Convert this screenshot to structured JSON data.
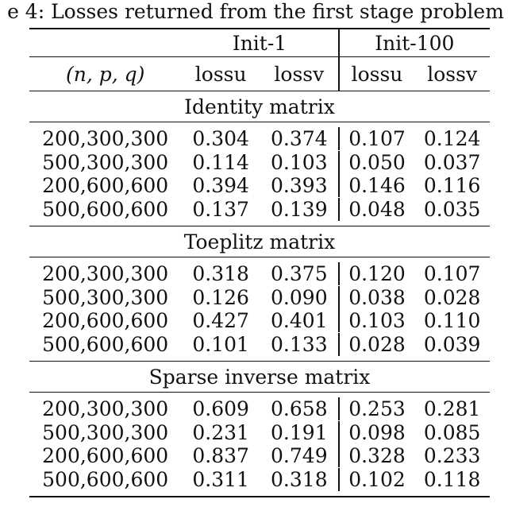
{
  "caption": "e 4: Losses returned from the first stage problem",
  "header": {
    "group_init1": "Init-1",
    "group_init100": "Init-100",
    "col_npq": "(n, p, q)",
    "lossu": "lossu",
    "lossv": "lossv"
  },
  "sections": [
    {
      "title": "Identity matrix",
      "rows": [
        [
          "200,300,300",
          "0.304",
          "0.374",
          "0.107",
          "0.124"
        ],
        [
          "500,300,300",
          "0.114",
          "0.103",
          "0.050",
          "0.037"
        ],
        [
          "200,600,600",
          "0.394",
          "0.393",
          "0.146",
          "0.116"
        ],
        [
          "500,600,600",
          "0.137",
          "0.139",
          "0.048",
          "0.035"
        ]
      ]
    },
    {
      "title": "Toeplitz matrix",
      "rows": [
        [
          "200,300,300",
          "0.318",
          "0.375",
          "0.120",
          "0.107"
        ],
        [
          "500,300,300",
          "0.126",
          "0.090",
          "0.038",
          "0.028"
        ],
        [
          "200,600,600",
          "0.427",
          "0.401",
          "0.103",
          "0.110"
        ],
        [
          "500,600,600",
          "0.101",
          "0.133",
          "0.028",
          "0.039"
        ]
      ]
    },
    {
      "title": "Sparse inverse matrix",
      "rows": [
        [
          "200,300,300",
          "0.609",
          "0.658",
          "0.253",
          "0.281"
        ],
        [
          "500,300,300",
          "0.231",
          "0.191",
          "0.098",
          "0.085"
        ],
        [
          "200,600,600",
          "0.837",
          "0.749",
          "0.328",
          "0.233"
        ],
        [
          "500,600,600",
          "0.311",
          "0.318",
          "0.102",
          "0.118"
        ]
      ]
    }
  ]
}
